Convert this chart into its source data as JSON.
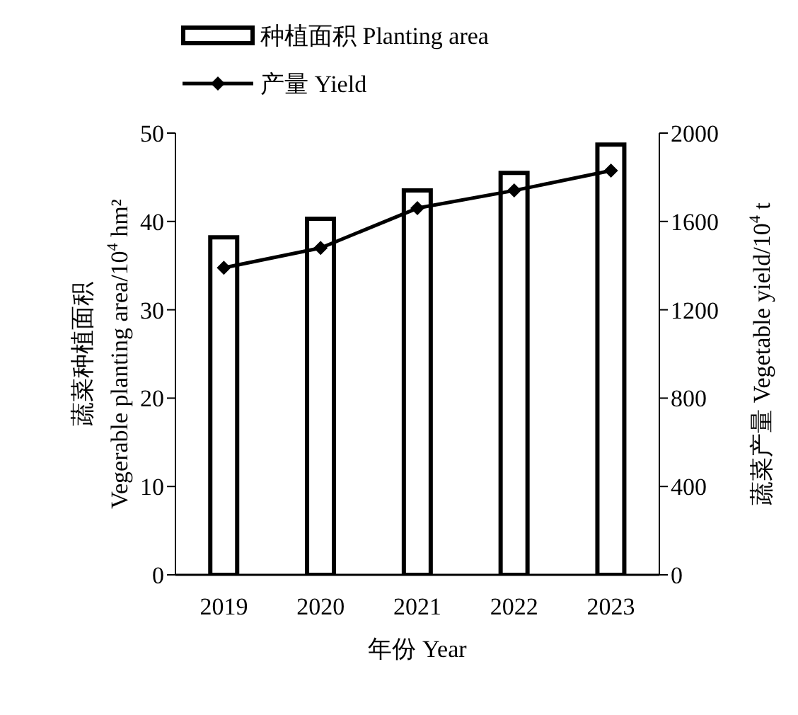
{
  "chart_data": {
    "type": "bar",
    "categories": [
      "2019",
      "2020",
      "2021",
      "2022",
      "2023"
    ],
    "series": [
      {
        "name": "种植面积 Planting area",
        "color": "#ffffff",
        "values": [
          38.2,
          40.3,
          43.5,
          45.5,
          48.7
        ]
      },
      {
        "name": "产量 Yield",
        "type": "line",
        "axis": "y2",
        "color": "#000000",
        "values": [
          1390,
          1480,
          1660,
          1740,
          1830
        ]
      }
    ],
    "xlabel": "年份 Year",
    "ylabel": "蔬菜种植面积\nVegerable planting area/10$^{4}$ hm²",
    "y2label": "蔬菜产量 Vegetable yield/10$^{4}$ t",
    "ylim": [
      0,
      50
    ],
    "yticks": [
      0,
      10,
      20,
      30,
      40,
      50
    ],
    "y2lim": [
      0,
      2000
    ],
    "y2ticks": [
      0,
      400,
      800,
      1200,
      1600,
      2000
    ],
    "grid": false,
    "legend": "top",
    "marker": "diamond",
    "line_style": "solid"
  }
}
